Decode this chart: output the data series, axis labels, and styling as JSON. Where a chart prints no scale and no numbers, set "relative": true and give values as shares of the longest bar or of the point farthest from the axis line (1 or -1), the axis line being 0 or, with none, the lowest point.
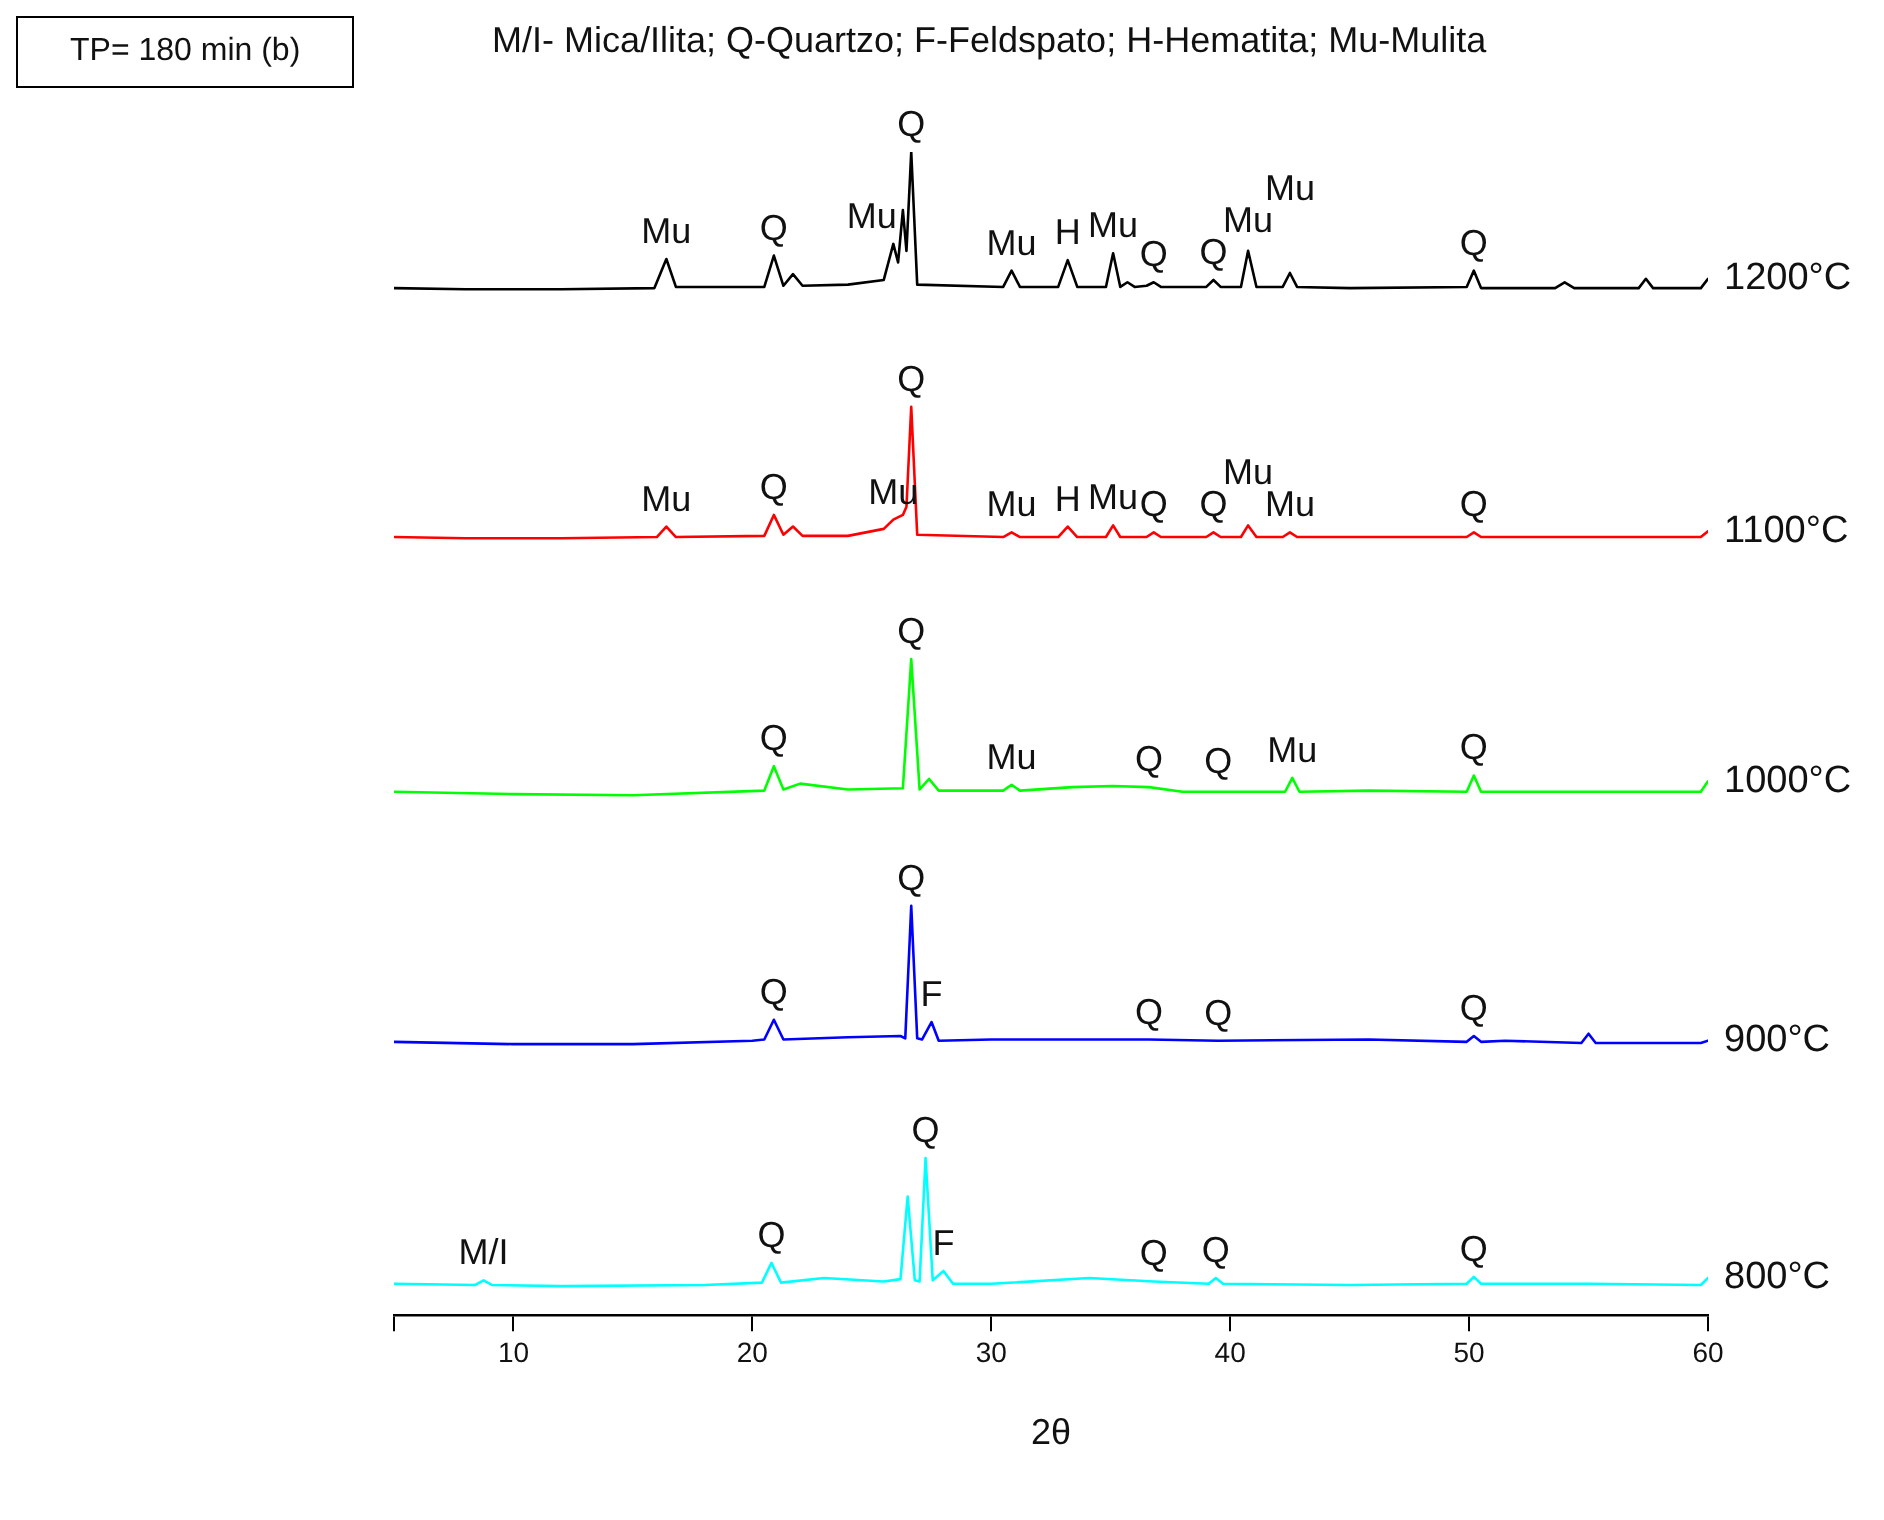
{
  "chart_data": {
    "type": "line",
    "title": "M/I- Mica/Ilita; Q-Quartzo; F-Feldspato; H-Hematita; Mu-Mulita",
    "xlabel": "2θ",
    "relative": true,
    "legend": false,
    "grid": false,
    "marker": "none",
    "line_style": "solid",
    "tick_labels": "x",
    "xlim": [
      5,
      60
    ],
    "xticks": [
      {
        "value": 5,
        "label": null
      },
      10,
      20,
      30,
      40,
      50,
      60
    ],
    "series": [
      {
        "name": "1200°C",
        "color": "#000000",
        "x": [
          5,
          8,
          12,
          15.9,
          16.4,
          16.8,
          20.5,
          20.9,
          21.3,
          21.7,
          22.1,
          24,
          25.5,
          25.9,
          26.1,
          26.3,
          26.45,
          26.65,
          26.9,
          30.5,
          30.85,
          31.2,
          32.8,
          33.2,
          33.6,
          34.8,
          35.1,
          35.4,
          35.7,
          36.0,
          36.5,
          36.8,
          37.1,
          39.0,
          39.3,
          39.6,
          40.45,
          40.75,
          41.1,
          42.2,
          42.5,
          42.8,
          45,
          49.9,
          50.2,
          50.5,
          53.6,
          54.0,
          54.4,
          57.1,
          57.4,
          57.7,
          59.7,
          60
        ],
        "values": [
          0.883,
          0.882,
          0.882,
          0.883,
          0.908,
          0.884,
          0.884,
          0.911,
          0.885,
          0.895,
          0.885,
          0.886,
          0.89,
          0.921,
          0.905,
          0.95,
          0.915,
          1.0,
          0.886,
          0.884,
          0.898,
          0.884,
          0.884,
          0.907,
          0.884,
          0.884,
          0.913,
          0.884,
          0.888,
          0.884,
          0.885,
          0.888,
          0.884,
          0.884,
          0.89,
          0.884,
          0.884,
          0.915,
          0.884,
          0.884,
          0.896,
          0.884,
          0.883,
          0.884,
          0.898,
          0.883,
          0.883,
          0.888,
          0.883,
          0.883,
          0.891,
          0.883,
          0.883,
          0.891
        ]
      },
      {
        "name": "1100°C",
        "color": "#ff0000",
        "x": [
          5,
          8,
          12,
          16.0,
          16.4,
          16.8,
          20.5,
          20.9,
          21.3,
          21.7,
          22.1,
          24,
          25.5,
          25.9,
          26.3,
          26.45,
          26.65,
          26.9,
          30.5,
          30.85,
          31.2,
          32.8,
          33.2,
          33.6,
          34.8,
          35.1,
          35.4,
          36.5,
          36.8,
          37.1,
          39.0,
          39.3,
          39.6,
          40.45,
          40.75,
          41.1,
          42.2,
          42.5,
          42.8,
          49.9,
          50.2,
          50.5,
          59.7,
          60
        ],
        "values": [
          0.669,
          0.668,
          0.668,
          0.669,
          0.678,
          0.669,
          0.67,
          0.688,
          0.671,
          0.678,
          0.67,
          0.67,
          0.676,
          0.684,
          0.688,
          0.695,
          0.781,
          0.671,
          0.669,
          0.673,
          0.669,
          0.669,
          0.678,
          0.669,
          0.669,
          0.679,
          0.669,
          0.669,
          0.673,
          0.669,
          0.669,
          0.673,
          0.669,
          0.669,
          0.679,
          0.669,
          0.669,
          0.673,
          0.669,
          0.669,
          0.673,
          0.669,
          0.669,
          0.674
        ]
      },
      {
        "name": "1000°C",
        "color": "#00ff00",
        "x": [
          5,
          10,
          15,
          20.5,
          20.9,
          21.3,
          22.0,
          24,
          26.3,
          26.65,
          27.0,
          27.4,
          27.8,
          30.5,
          30.85,
          31.2,
          33.4,
          35.1,
          36.6,
          38,
          42.3,
          42.6,
          42.9,
          45.8,
          49.9,
          50.2,
          50.5,
          55,
          59.7,
          60
        ],
        "values": [
          0.45,
          0.448,
          0.447,
          0.451,
          0.472,
          0.452,
          0.457,
          0.452,
          0.453,
          0.564,
          0.452,
          0.461,
          0.451,
          0.451,
          0.456,
          0.451,
          0.454,
          0.455,
          0.454,
          0.45,
          0.45,
          0.462,
          0.45,
          0.451,
          0.45,
          0.464,
          0.45,
          0.45,
          0.45,
          0.459
        ]
      },
      {
        "name": "900°C",
        "color": "#0000ff",
        "x": [
          5,
          10,
          15,
          20,
          20.5,
          20.9,
          21.3,
          24,
          26.2,
          26.4,
          26.65,
          26.9,
          27.1,
          27.5,
          27.8,
          30,
          33,
          36.6,
          39.5,
          45.8,
          49.9,
          50.2,
          50.5,
          51.5,
          54.7,
          55.0,
          55.3,
          59.7,
          60
        ],
        "values": [
          0.235,
          0.233,
          0.233,
          0.236,
          0.237,
          0.254,
          0.237,
          0.239,
          0.24,
          0.238,
          0.352,
          0.238,
          0.237,
          0.252,
          0.236,
          0.237,
          0.237,
          0.237,
          0.236,
          0.237,
          0.235,
          0.24,
          0.235,
          0.236,
          0.234,
          0.242,
          0.234,
          0.234,
          0.236
        ]
      },
      {
        "name": "800°C",
        "color": "#00ffff",
        "x": [
          5,
          8.4,
          8.75,
          9.1,
          12,
          18,
          20.4,
          20.8,
          21.2,
          23,
          25.5,
          26.2,
          26.5,
          26.8,
          27.0,
          27.25,
          27.55,
          28.0,
          28.4,
          30,
          34.1,
          36.8,
          39.1,
          39.4,
          39.7,
          45,
          49.9,
          50.2,
          50.5,
          55,
          59.7,
          60
        ],
        "values": [
          0.027,
          0.026,
          0.03,
          0.026,
          0.025,
          0.026,
          0.028,
          0.045,
          0.028,
          0.032,
          0.029,
          0.031,
          0.102,
          0.03,
          0.029,
          0.135,
          0.03,
          0.038,
          0.027,
          0.027,
          0.032,
          0.029,
          0.027,
          0.032,
          0.027,
          0.026,
          0.027,
          0.033,
          0.027,
          0.027,
          0.026,
          0.032
        ]
      }
    ],
    "annotations": [
      "TP= 180 min (b)",
      {
        "text": "Mu",
        "x": 16.4,
        "y": 0.908
      },
      {
        "text": "Q",
        "x": 20.9,
        "y": 0.911
      },
      {
        "text": "Mu",
        "x": 25.9,
        "y": 0.921
      },
      {
        "text": "Q",
        "x": 26.65,
        "y": 1.0
      },
      {
        "text": "Mu",
        "x": 30.85,
        "y": 0.898
      },
      {
        "text": "H",
        "x": 33.2,
        "y": 0.907
      },
      {
        "text": "Mu",
        "x": 35.1,
        "y": 0.913
      },
      {
        "text": "Q",
        "x": 36.8,
        "y": 0.888
      },
      {
        "text": "Q",
        "x": 39.3,
        "y": 0.89
      },
      {
        "text": "Mu",
        "x": 40.75,
        "y": 0.915
      },
      {
        "text": "Mu",
        "x": 42.5,
        "y": 0.896
      },
      {
        "text": "Q",
        "x": 50.2,
        "y": 0.898
      },
      {
        "text": "Mu",
        "x": 16.4,
        "y": 0.678
      },
      {
        "text": "Q",
        "x": 20.9,
        "y": 0.688
      },
      {
        "text": "Mu",
        "x": 25.9,
        "y": 0.684
      },
      {
        "text": "Q",
        "x": 26.65,
        "y": 0.781
      },
      {
        "text": "Mu",
        "x": 30.85,
        "y": 0.673
      },
      {
        "text": "H",
        "x": 33.2,
        "y": 0.678
      },
      {
        "text": "Mu",
        "x": 35.1,
        "y": 0.679
      },
      {
        "text": "Q",
        "x": 36.8,
        "y": 0.673
      },
      {
        "text": "Q",
        "x": 39.3,
        "y": 0.673
      },
      {
        "text": "Mu",
        "x": 40.75,
        "y": 0.679
      },
      {
        "text": "Mu",
        "x": 42.5,
        "y": 0.673
      },
      {
        "text": "Q",
        "x": 50.2,
        "y": 0.673
      },
      {
        "text": "Q",
        "x": 20.9,
        "y": 0.472
      },
      {
        "text": "Q",
        "x": 26.65,
        "y": 0.564
      },
      {
        "text": "Mu",
        "x": 30.85,
        "y": 0.456
      },
      {
        "text": "Q",
        "x": 36.6,
        "y": 0.454
      },
      {
        "text": "Q",
        "x": 39.5,
        "y": 0.452
      },
      {
        "text": "Mu",
        "x": 42.6,
        "y": 0.462
      },
      {
        "text": "Q",
        "x": 50.2,
        "y": 0.464
      },
      {
        "text": "Q",
        "x": 20.9,
        "y": 0.254
      },
      {
        "text": "Q",
        "x": 26.65,
        "y": 0.352
      },
      {
        "text": "F",
        "x": 27.5,
        "y": 0.252
      },
      {
        "text": "Q",
        "x": 36.6,
        "y": 0.237
      },
      {
        "text": "Q",
        "x": 39.5,
        "y": 0.236
      },
      {
        "text": "Q",
        "x": 50.2,
        "y": 0.24
      },
      {
        "text": "M/I",
        "x": 8.75,
        "y": 0.03
      },
      {
        "text": "Q",
        "x": 20.8,
        "y": 0.045
      },
      {
        "text": "Q",
        "x": 27.25,
        "y": 0.135
      },
      {
        "text": "F",
        "x": 28.0,
        "y": 0.038
      },
      {
        "text": "Q",
        "x": 36.8,
        "y": 0.029
      },
      {
        "text": "Q",
        "x": 39.4,
        "y": 0.032
      },
      {
        "text": "Q",
        "x": 50.2,
        "y": 0.033
      }
    ]
  }
}
